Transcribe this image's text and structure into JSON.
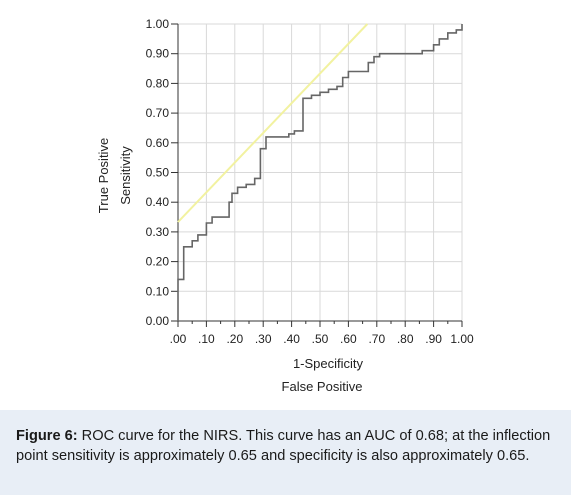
{
  "chart_data": {
    "type": "line",
    "ylabel": [
      "True Positive",
      "Sensitivity"
    ],
    "xlabel": [
      "1-Specificity",
      "False Positive"
    ],
    "xlim": [
      0,
      1
    ],
    "ylim": [
      0,
      1
    ],
    "x_tick_labels": [
      ".00",
      ".10",
      ".20",
      ".30",
      ".40",
      ".50",
      ".60",
      ".70",
      ".80",
      ".90",
      "1.00"
    ],
    "y_tick_labels": [
      "0.00",
      "0.10",
      "0.20",
      "0.30",
      "0.40",
      "0.50",
      "0.60",
      "0.70",
      "0.80",
      "0.90",
      "1.00"
    ],
    "grid": true,
    "colors": {
      "roc": "#666666",
      "reference": "#f2f2a0",
      "grid": "#d9d9d9",
      "axis": "#333333"
    },
    "series": [
      {
        "type": "step",
        "points": [
          [
            0.0,
            0.0
          ],
          [
            0.0,
            0.14
          ],
          [
            0.02,
            0.14
          ],
          [
            0.02,
            0.25
          ],
          [
            0.05,
            0.25
          ],
          [
            0.05,
            0.27
          ],
          [
            0.07,
            0.27
          ],
          [
            0.07,
            0.29
          ],
          [
            0.1,
            0.29
          ],
          [
            0.1,
            0.33
          ],
          [
            0.12,
            0.33
          ],
          [
            0.12,
            0.35
          ],
          [
            0.18,
            0.35
          ],
          [
            0.18,
            0.4
          ],
          [
            0.19,
            0.4
          ],
          [
            0.19,
            0.43
          ],
          [
            0.21,
            0.43
          ],
          [
            0.21,
            0.45
          ],
          [
            0.24,
            0.45
          ],
          [
            0.24,
            0.46
          ],
          [
            0.27,
            0.46
          ],
          [
            0.27,
            0.48
          ],
          [
            0.29,
            0.48
          ],
          [
            0.29,
            0.58
          ],
          [
            0.31,
            0.58
          ],
          [
            0.31,
            0.62
          ],
          [
            0.39,
            0.62
          ],
          [
            0.39,
            0.63
          ],
          [
            0.41,
            0.63
          ],
          [
            0.41,
            0.64
          ],
          [
            0.44,
            0.64
          ],
          [
            0.44,
            0.75
          ],
          [
            0.47,
            0.75
          ],
          [
            0.47,
            0.76
          ],
          [
            0.5,
            0.76
          ],
          [
            0.5,
            0.77
          ],
          [
            0.53,
            0.77
          ],
          [
            0.53,
            0.78
          ],
          [
            0.56,
            0.78
          ],
          [
            0.56,
            0.79
          ],
          [
            0.58,
            0.79
          ],
          [
            0.58,
            0.82
          ],
          [
            0.6,
            0.82
          ],
          [
            0.6,
            0.84
          ],
          [
            0.67,
            0.84
          ],
          [
            0.67,
            0.87
          ],
          [
            0.69,
            0.87
          ],
          [
            0.69,
            0.89
          ],
          [
            0.71,
            0.89
          ],
          [
            0.71,
            0.9
          ],
          [
            0.86,
            0.9
          ],
          [
            0.86,
            0.91
          ],
          [
            0.9,
            0.91
          ],
          [
            0.9,
            0.93
          ],
          [
            0.92,
            0.93
          ],
          [
            0.92,
            0.95
          ],
          [
            0.95,
            0.95
          ],
          [
            0.95,
            0.97
          ],
          [
            0.98,
            0.97
          ],
          [
            0.98,
            0.98
          ],
          [
            1.0,
            0.98
          ],
          [
            1.0,
            1.0
          ]
        ]
      },
      {
        "type": "reference",
        "points": [
          [
            0.0,
            0.3333
          ],
          [
            0.6667,
            1.0
          ]
        ]
      }
    ]
  },
  "caption": {
    "label": "Figure 6:",
    "text": " ROC curve for the NIRS. This curve has an AUC of 0.68; at the inflection point sensitivity is approximately 0.65 and specificity is also approximately 0.65."
  }
}
